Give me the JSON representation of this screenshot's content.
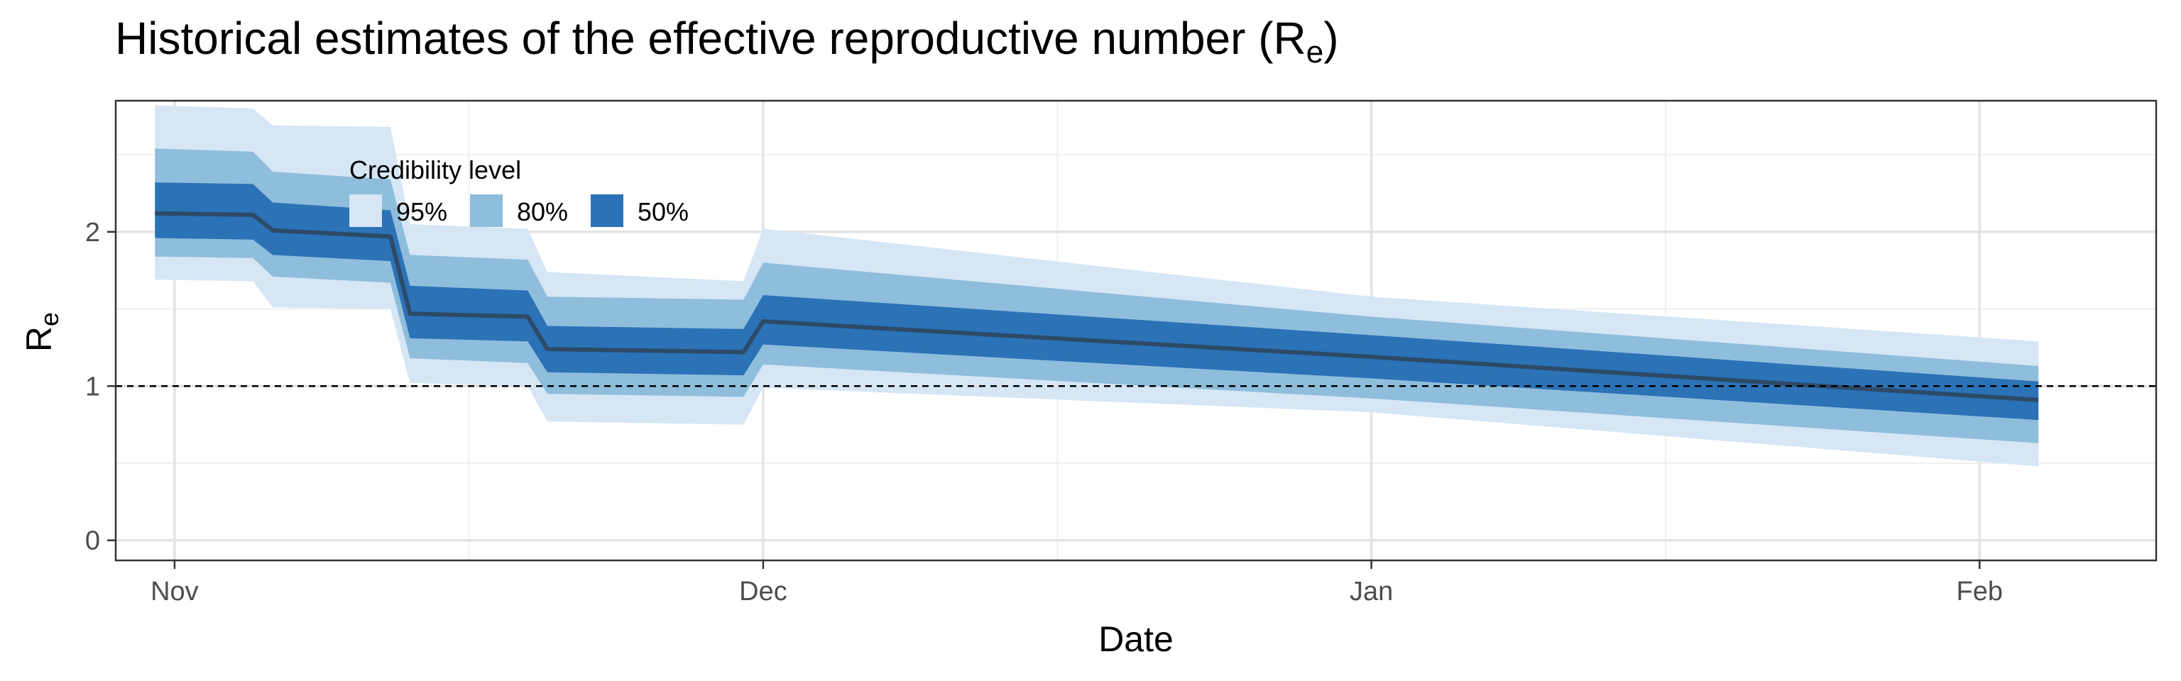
{
  "chart_data": {
    "type": "area",
    "title": "Historical estimates of the effective reproductive number (R",
    "title_subscript": "e",
    "title_suffix": ")",
    "xlabel": "Date",
    "ylabel": "R",
    "ylabel_subscript": "e",
    "x_range": [
      "2020-10-29",
      "2021-02-10"
    ],
    "ylim": [
      -0.13,
      2.85
    ],
    "x_ticks": [
      {
        "date": "2020-11-01",
        "label": "Nov"
      },
      {
        "date": "2020-12-01",
        "label": "Dec"
      },
      {
        "date": "2021-01-01",
        "label": "Jan"
      },
      {
        "date": "2021-02-01",
        "label": "Feb"
      }
    ],
    "x_minor_ticks": [
      "2020-11-16",
      "2020-12-16",
      "2021-01-16"
    ],
    "y_ticks": [
      0,
      1,
      2
    ],
    "y_minor_ticks": [
      0.5,
      1.5,
      2.5
    ],
    "reference_line": {
      "y": 1,
      "style": "dashed"
    },
    "grid": true,
    "legend": {
      "title": "Credibility level",
      "placement": "top-left",
      "items": [
        {
          "label": "95%",
          "color": "#d6e6f5"
        },
        {
          "label": "80%",
          "color": "#8fbddc"
        },
        {
          "label": "50%",
          "color": "#2b72b7"
        }
      ]
    },
    "colors": {
      "median": "#2d4a68",
      "band_95": "#d6e6f5",
      "band_80": "#8fbddc",
      "band_50": "#2b72b7"
    },
    "series": [
      {
        "x": [
          "2020-10-31",
          "2020-11-05",
          "2020-11-06",
          "2020-11-12",
          "2020-11-13",
          "2020-11-19",
          "2020-11-20",
          "2020-11-30",
          "2020-12-01",
          "2021-01-01",
          "2021-02-04"
        ],
        "median": [
          2.12,
          2.11,
          2.01,
          1.97,
          1.47,
          1.45,
          1.24,
          1.22,
          1.42,
          1.19,
          0.91
        ],
        "lower_50": [
          1.96,
          1.95,
          1.85,
          1.81,
          1.31,
          1.29,
          1.09,
          1.07,
          1.27,
          1.05,
          0.78
        ],
        "upper_50": [
          2.32,
          2.31,
          2.19,
          2.14,
          1.65,
          1.62,
          1.39,
          1.37,
          1.59,
          1.33,
          1.03
        ],
        "lower_80": [
          1.84,
          1.83,
          1.71,
          1.67,
          1.18,
          1.15,
          0.95,
          0.93,
          1.14,
          0.92,
          0.63
        ],
        "upper_80": [
          2.54,
          2.52,
          2.39,
          2.34,
          1.85,
          1.82,
          1.58,
          1.56,
          1.8,
          1.45,
          1.13
        ],
        "lower_95": [
          1.69,
          1.68,
          1.51,
          1.5,
          1.02,
          1.0,
          0.77,
          0.75,
          0.99,
          0.83,
          0.48
        ],
        "upper_95": [
          2.82,
          2.8,
          2.69,
          2.68,
          2.05,
          2.02,
          1.74,
          1.68,
          2.02,
          1.58,
          1.29
        ]
      }
    ]
  }
}
